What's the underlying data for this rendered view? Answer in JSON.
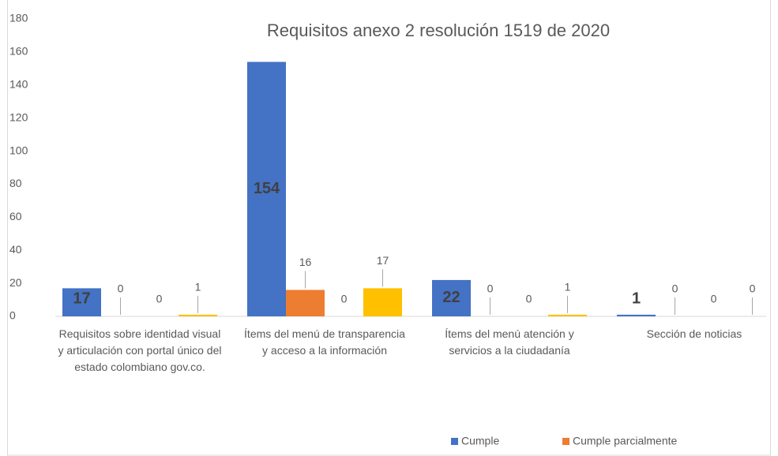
{
  "chart_data": {
    "type": "bar",
    "title": "Requisitos anexo 2 resolución 1519 de 2020",
    "categories": [
      "Requisitos sobre identidad visual y articulación con portal único del estado colombiano gov.co.",
      "Ítems del  menú de transparencia y acceso a la información",
      "Ítems del menú atención y servicios a la ciudadanía",
      "Sección de noticias"
    ],
    "series": [
      {
        "name": "Cumple",
        "color": "#4472c4",
        "values": [
          17,
          154,
          22,
          1
        ]
      },
      {
        "name": "Cumple parcialmente",
        "color": "#ed7d31",
        "values": [
          0,
          16,
          0,
          0
        ]
      },
      {
        "color": "#a5a5a5",
        "values": [
          0,
          0,
          0,
          0
        ]
      },
      {
        "color": "#ffc000",
        "values": [
          1,
          17,
          1,
          0
        ]
      }
    ],
    "ylim": [
      0,
      180
    ],
    "yticks": [
      0,
      20,
      40,
      60,
      80,
      100,
      120,
      140,
      160,
      180
    ],
    "grid": false
  }
}
